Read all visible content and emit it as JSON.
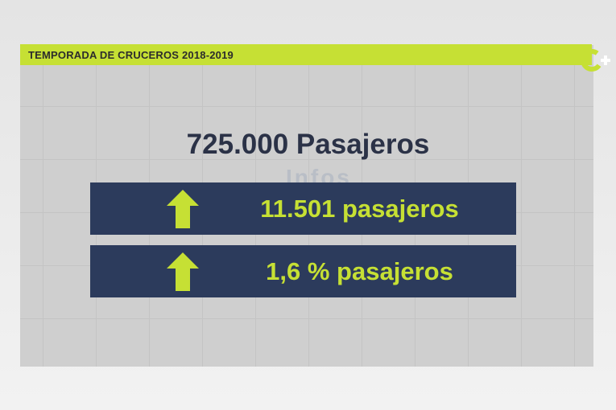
{
  "header": {
    "title": "TEMPORADA DE CRUCEROS 2018-2019"
  },
  "headline": "725.000 Pasajeros",
  "watermark": "Infos",
  "stats": [
    "11.501 pasajeros",
    "1,6 % pasajeros"
  ]
}
